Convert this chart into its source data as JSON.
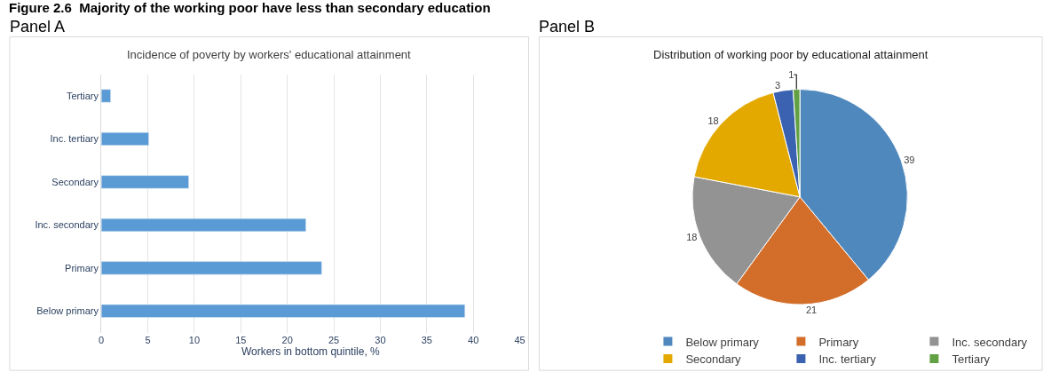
{
  "chart_data": [
    {
      "type": "bar",
      "orientation": "horizontal",
      "title": "Incidence of poverty by workers' educational attainment",
      "xlabel": "Workers in bottom quintile, %",
      "annotations": [
        "Figure 2.6  Majority of the working poor have less than secondary education",
        "Panel A"
      ],
      "categories": [
        "Tertiary",
        "Inc. tertiary",
        "Secondary",
        "Inc. secondary",
        "Primary",
        "Below primary"
      ],
      "values": [
        1.0,
        5.1,
        9.4,
        22.0,
        23.7,
        39.1
      ],
      "color": "#5b9bd5",
      "xlim": [
        0,
        45
      ],
      "xticks": [
        0,
        5,
        10,
        15,
        20,
        25,
        30,
        35,
        40,
        45
      ],
      "grid": "x",
      "legend": false
    },
    {
      "type": "pie",
      "title": "Distribution of working poor by educational attainment",
      "annotations": [
        "Panel B"
      ],
      "categories": [
        "Below primary",
        "Primary",
        "Inc. secondary",
        "Secondary",
        "Inc. tertiary",
        "Tertiary"
      ],
      "values": [
        39,
        21,
        18,
        18,
        3,
        1
      ],
      "colors": [
        "#4f88bd",
        "#d36e2a",
        "#939393",
        "#e3a900",
        "#3a62b0",
        "#62a044"
      ],
      "data_labels": true,
      "legend": "bottom"
    }
  ]
}
